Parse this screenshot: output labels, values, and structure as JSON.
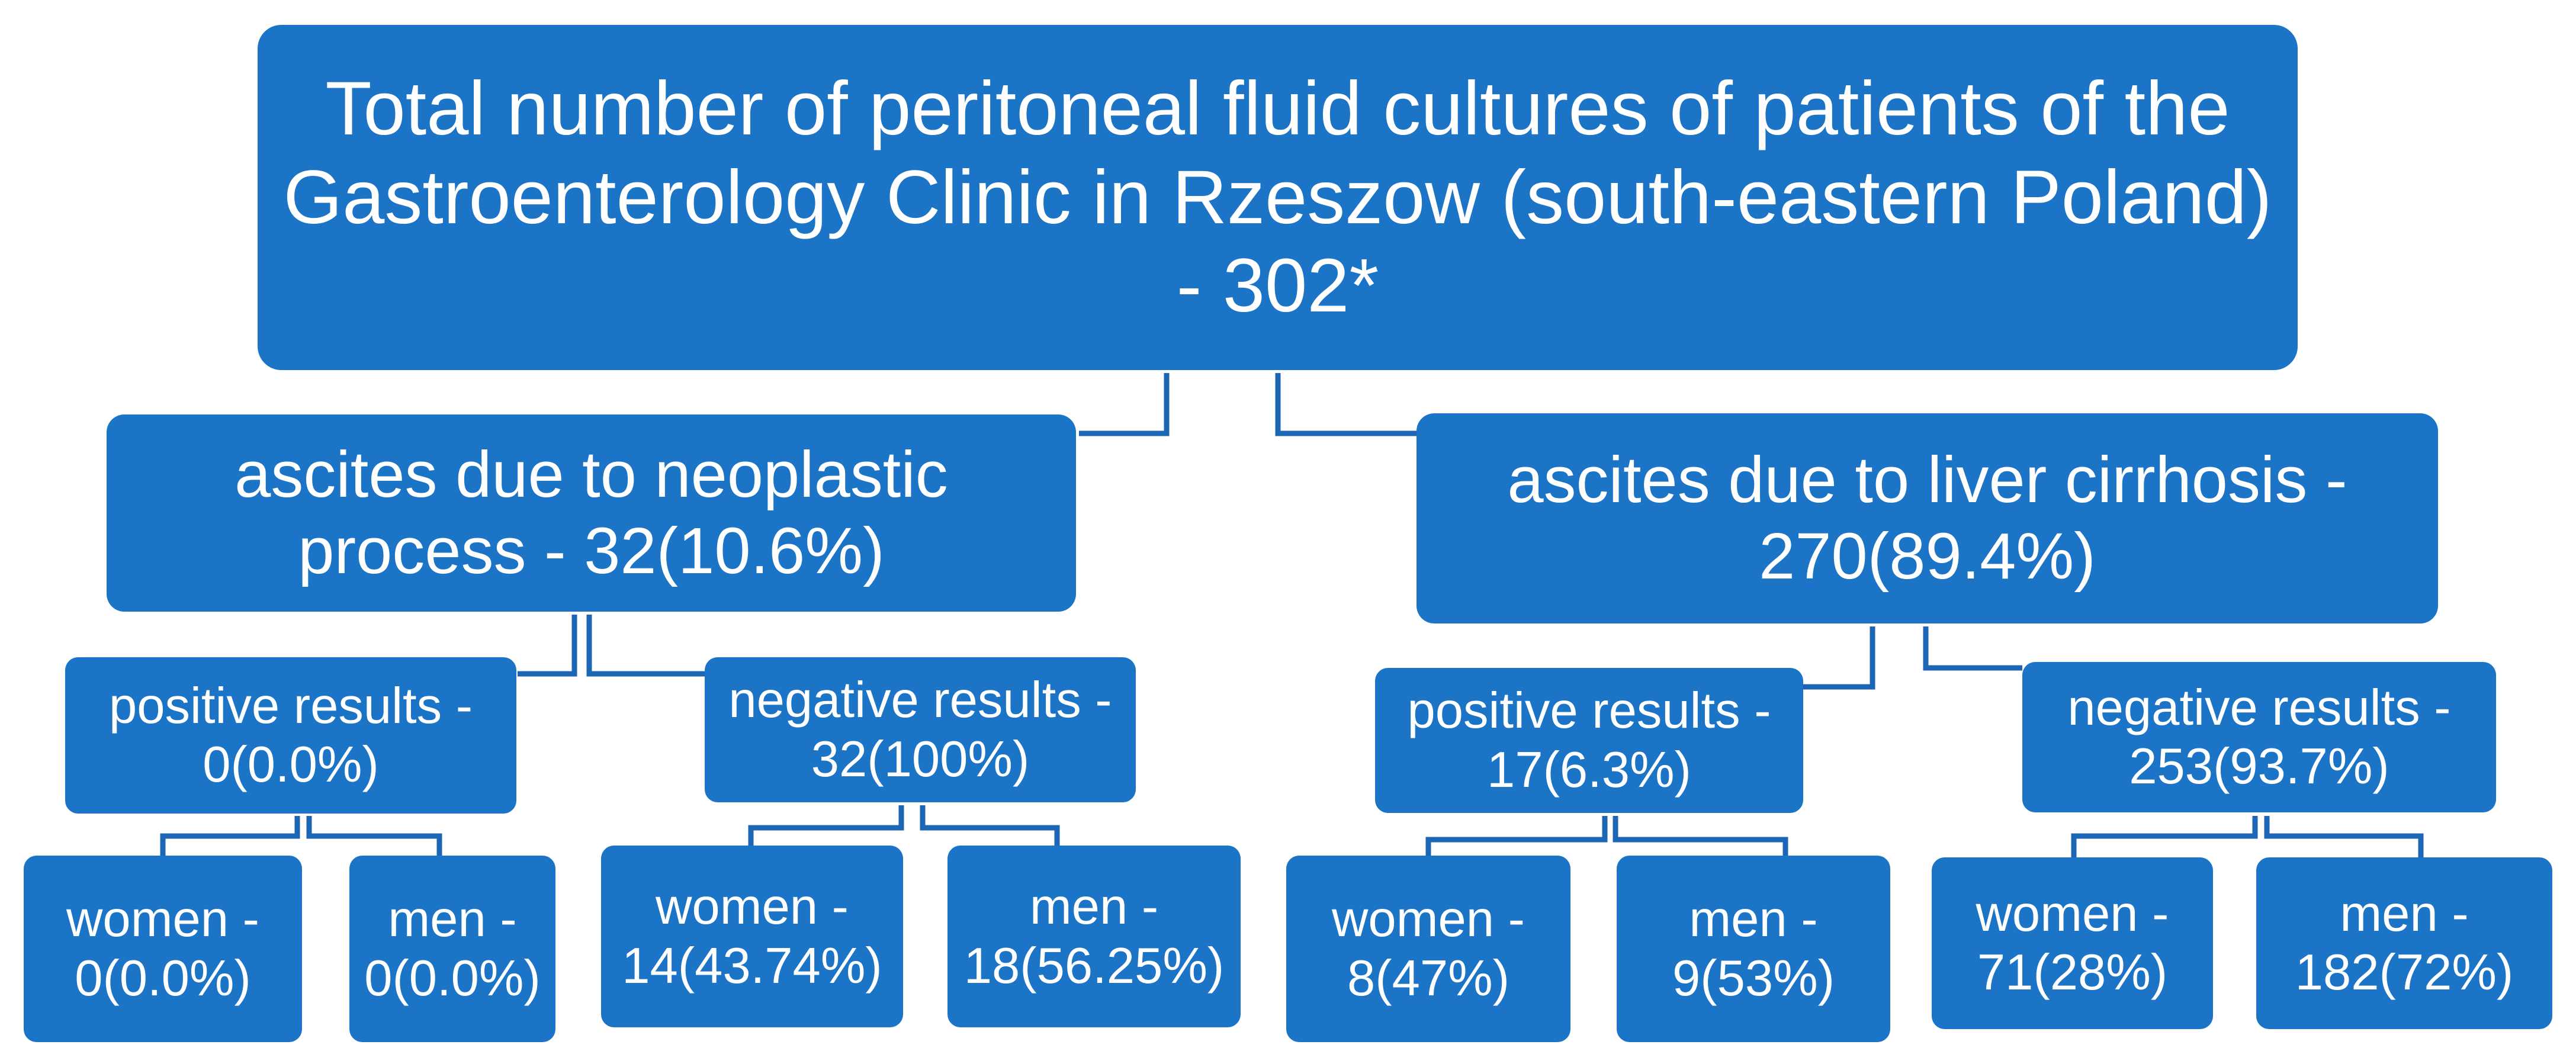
{
  "colors": {
    "node_fill": "#1c74c7",
    "connector": "#1c66b5",
    "text": "#ffffff",
    "background": "#ffffff"
  },
  "root": {
    "label": "Total number of peritoneal fluid cultures of patients of the Gastroenterology Clinic in Rzeszow (south-eastern Poland) - 302*"
  },
  "neoplastic": {
    "label": "ascites due to neoplastic process - 32(10.6%)",
    "positive": {
      "label": "positive results - 0(0.0%)",
      "women": "women - 0(0.0%)",
      "men": "men - 0(0.0%)"
    },
    "negative": {
      "label": "negative results - 32(100%)",
      "women": "women - 14(43.74%)",
      "men": "men - 18(56.25%)"
    }
  },
  "cirrhosis": {
    "label": "ascites due to liver cirrhosis - 270(89.4%)",
    "positive": {
      "label": "positive results - 17(6.3%)",
      "women": "women - 8(47%)",
      "men": "men - 9(53%)"
    },
    "negative": {
      "label": "negative results - 253(93.7%)",
      "women": "women - 71(28%)",
      "men": "men - 182(72%)"
    }
  }
}
